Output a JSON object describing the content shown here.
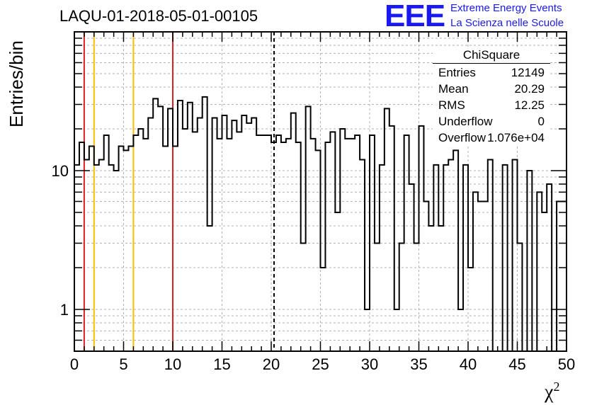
{
  "title": "LAQU-01-2018-05-01-00105",
  "logo": {
    "mark": "EEE",
    "line1": "Extreme Energy Events",
    "line2": "La Scienza nelle Scuole",
    "color": "#1a1af0"
  },
  "stats": {
    "title": "ChiSquare",
    "rows": [
      {
        "key": "Entries",
        "value": "12149"
      },
      {
        "key": "Mean",
        "value": "20.29"
      },
      {
        "key": "RMS",
        "value": "12.25"
      },
      {
        "key": "Underflow",
        "value": "0"
      },
      {
        "key": "Overflow",
        "value": "1.076e+04"
      }
    ]
  },
  "chart_data": {
    "type": "histogram",
    "ylabel": "Entries/bin",
    "xlabel": "χ",
    "xlabel_sup": "2",
    "xlim": [
      0,
      50
    ],
    "ylim": [
      0.5,
      100
    ],
    "yscale": "log",
    "grid": true,
    "bin_width": 0.5,
    "x_ticks": [
      0,
      5,
      10,
      15,
      20,
      25,
      30,
      35,
      40,
      45,
      50
    ],
    "y_ticks": [
      1,
      10
    ],
    "vertical_lines": [
      {
        "x": 1,
        "color": "#e02020",
        "style": "solid"
      },
      {
        "x": 2,
        "color": "#f5c000",
        "style": "solid"
      },
      {
        "x": 6,
        "color": "#f5c000",
        "style": "solid"
      },
      {
        "x": 10,
        "color": "#e02020",
        "style": "solid"
      },
      {
        "x": 20.29,
        "color": "#000000",
        "style": "dashed"
      }
    ],
    "values": [
      11,
      16,
      12,
      15,
      11,
      12,
      18,
      11,
      10,
      15,
      14,
      15,
      18,
      20,
      17,
      24,
      33,
      29,
      15,
      28,
      15,
      32,
      20,
      31,
      19,
      24,
      34,
      4,
      24,
      17,
      25,
      17,
      23,
      19,
      25,
      22,
      24,
      18,
      18,
      18,
      16,
      18,
      16,
      17,
      26,
      16,
      3,
      29,
      17,
      14,
      2,
      16,
      19,
      5,
      20,
      17,
      17,
      18,
      12,
      1,
      18,
      3,
      11,
      28,
      21,
      1,
      3,
      18,
      8,
      3,
      21,
      6,
      4,
      11,
      4,
      11,
      12,
      14,
      1,
      11,
      2,
      7,
      6,
      6,
      12,
      0,
      0,
      11,
      0,
      12,
      3,
      0,
      10,
      0,
      7,
      5,
      8,
      0,
      6,
      6
    ]
  }
}
